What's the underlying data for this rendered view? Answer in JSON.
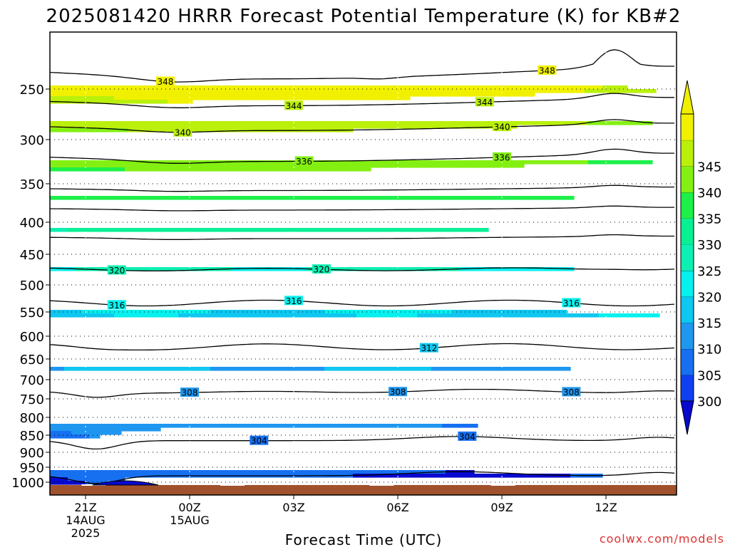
{
  "chart_data": {
    "type": "heatmap",
    "title": "2025081420 HRRR Forecast Potential Temperature (K) for KB#2",
    "xlabel": "Forecast Time (UTC)",
    "ylabel": "",
    "watermark": "coolwx.com/models",
    "x_ticks": [
      {
        "hour": 0,
        "label": "21Z",
        "sub1": "14AUG",
        "sub2": "2025"
      },
      {
        "hour": 3,
        "label": "00Z",
        "sub1": "15AUG",
        "sub2": ""
      },
      {
        "hour": 6,
        "label": "03Z",
        "sub1": "",
        "sub2": ""
      },
      {
        "hour": 9,
        "label": "06Z",
        "sub1": "",
        "sub2": ""
      },
      {
        "hour": 12,
        "label": "09Z",
        "sub1": "",
        "sub2": ""
      },
      {
        "hour": 15,
        "label": "12Z",
        "sub1": "",
        "sub2": ""
      }
    ],
    "xlim": [
      -1,
      17
    ],
    "y_ticks": [
      250,
      300,
      350,
      400,
      450,
      500,
      550,
      600,
      650,
      700,
      750,
      800,
      850,
      900,
      950,
      1000
    ],
    "ylim_hpa": [
      1020,
      207
    ],
    "grid": true,
    "colorbar": {
      "levels": [
        300,
        305,
        310,
        315,
        320,
        325,
        330,
        335,
        340,
        345
      ],
      "labels": [
        "300",
        "305",
        "310",
        "315",
        "320",
        "325",
        "330",
        "335",
        "340",
        "345"
      ],
      "colors": [
        "#0f40f0",
        "#1670f0",
        "#1f97f0",
        "#0fc7f0",
        "#07f0ee",
        "#0ef0b2",
        "#09f094",
        "#1ef04a",
        "#84f012",
        "#baf00c",
        "#f0f000"
      ],
      "under_color": "#0808d0",
      "over_color": "#f0f000"
    },
    "contour_interval": 4,
    "contour_labels": [
      {
        "value": "348",
        "hour": 2.3
      },
      {
        "value": "348",
        "hour": 13.3
      },
      {
        "value": "344",
        "hour": 6.0
      },
      {
        "value": "344",
        "hour": 11.5
      },
      {
        "value": "340",
        "hour": 2.8
      },
      {
        "value": "340",
        "hour": 12.0
      },
      {
        "value": "336",
        "hour": 6.3
      },
      {
        "value": "336",
        "hour": 12.0
      },
      {
        "value": "320",
        "hour": 0.9
      },
      {
        "value": "320",
        "hour": 6.8
      },
      {
        "value": "316",
        "hour": 0.9
      },
      {
        "value": "316",
        "hour": 6.0
      },
      {
        "value": "316",
        "hour": 14.0
      },
      {
        "value": "312",
        "hour": 9.9
      },
      {
        "value": "308",
        "hour": 3.0
      },
      {
        "value": "308",
        "hour": 9.0
      },
      {
        "value": "308",
        "hour": 14.0
      },
      {
        "value": "304",
        "hour": 5.0
      },
      {
        "value": "304",
        "hour": 11.0
      }
    ],
    "ground_color": "#a0522d"
  }
}
